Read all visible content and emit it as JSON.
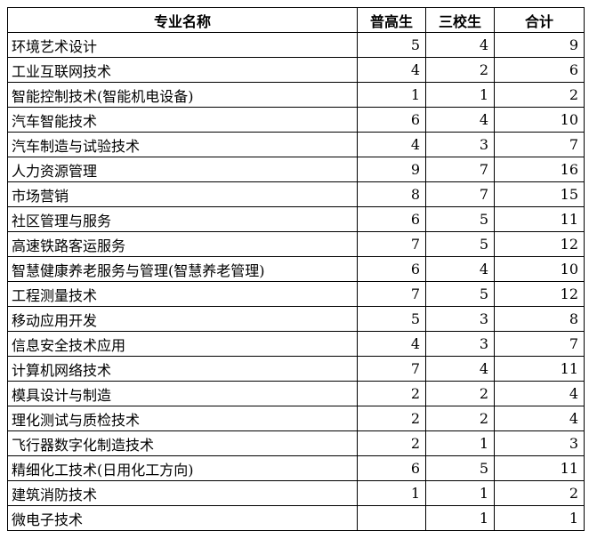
{
  "headers": [
    "专业名称",
    "普高生",
    "三校生",
    "合计"
  ],
  "rows": [
    [
      "环境艺术设计",
      "5",
      "4",
      "9"
    ],
    [
      "工业互联网技术",
      "4",
      "2",
      "6"
    ],
    [
      "智能控制技术(智能机电设备)",
      "1",
      "1",
      "2"
    ],
    [
      "汽车智能技术",
      "6",
      "4",
      "10"
    ],
    [
      "汽车制造与试验技术",
      "4",
      "3",
      "7"
    ],
    [
      "人力资源管理",
      "9",
      "7",
      "16"
    ],
    [
      "市场营销",
      "8",
      "7",
      "15"
    ],
    [
      "社区管理与服务",
      "6",
      "5",
      "11"
    ],
    [
      "高速铁路客运服务",
      "7",
      "5",
      "12"
    ],
    [
      "智慧健康养老服务与管理(智慧养老管理)",
      "6",
      "4",
      "10"
    ],
    [
      "工程测量技术",
      "7",
      "5",
      "12"
    ],
    [
      "移动应用开发",
      "5",
      "3",
      "8"
    ],
    [
      "信息安全技术应用",
      "4",
      "3",
      "7"
    ],
    [
      "计算机网络技术",
      "7",
      "4",
      "11"
    ],
    [
      "模具设计与制造",
      "2",
      "2",
      "4"
    ],
    [
      "理化测试与质检技术",
      "2",
      "2",
      "4"
    ],
    [
      "飞行器数字化制造技术",
      "2",
      "1",
      "3"
    ],
    [
      "精细化工技术(日用化工方向)",
      "6",
      "5",
      "11"
    ],
    [
      "建筑消防技术",
      "1",
      "1",
      "2"
    ],
    [
      "微电子技术",
      "",
      "1",
      "1"
    ]
  ]
}
